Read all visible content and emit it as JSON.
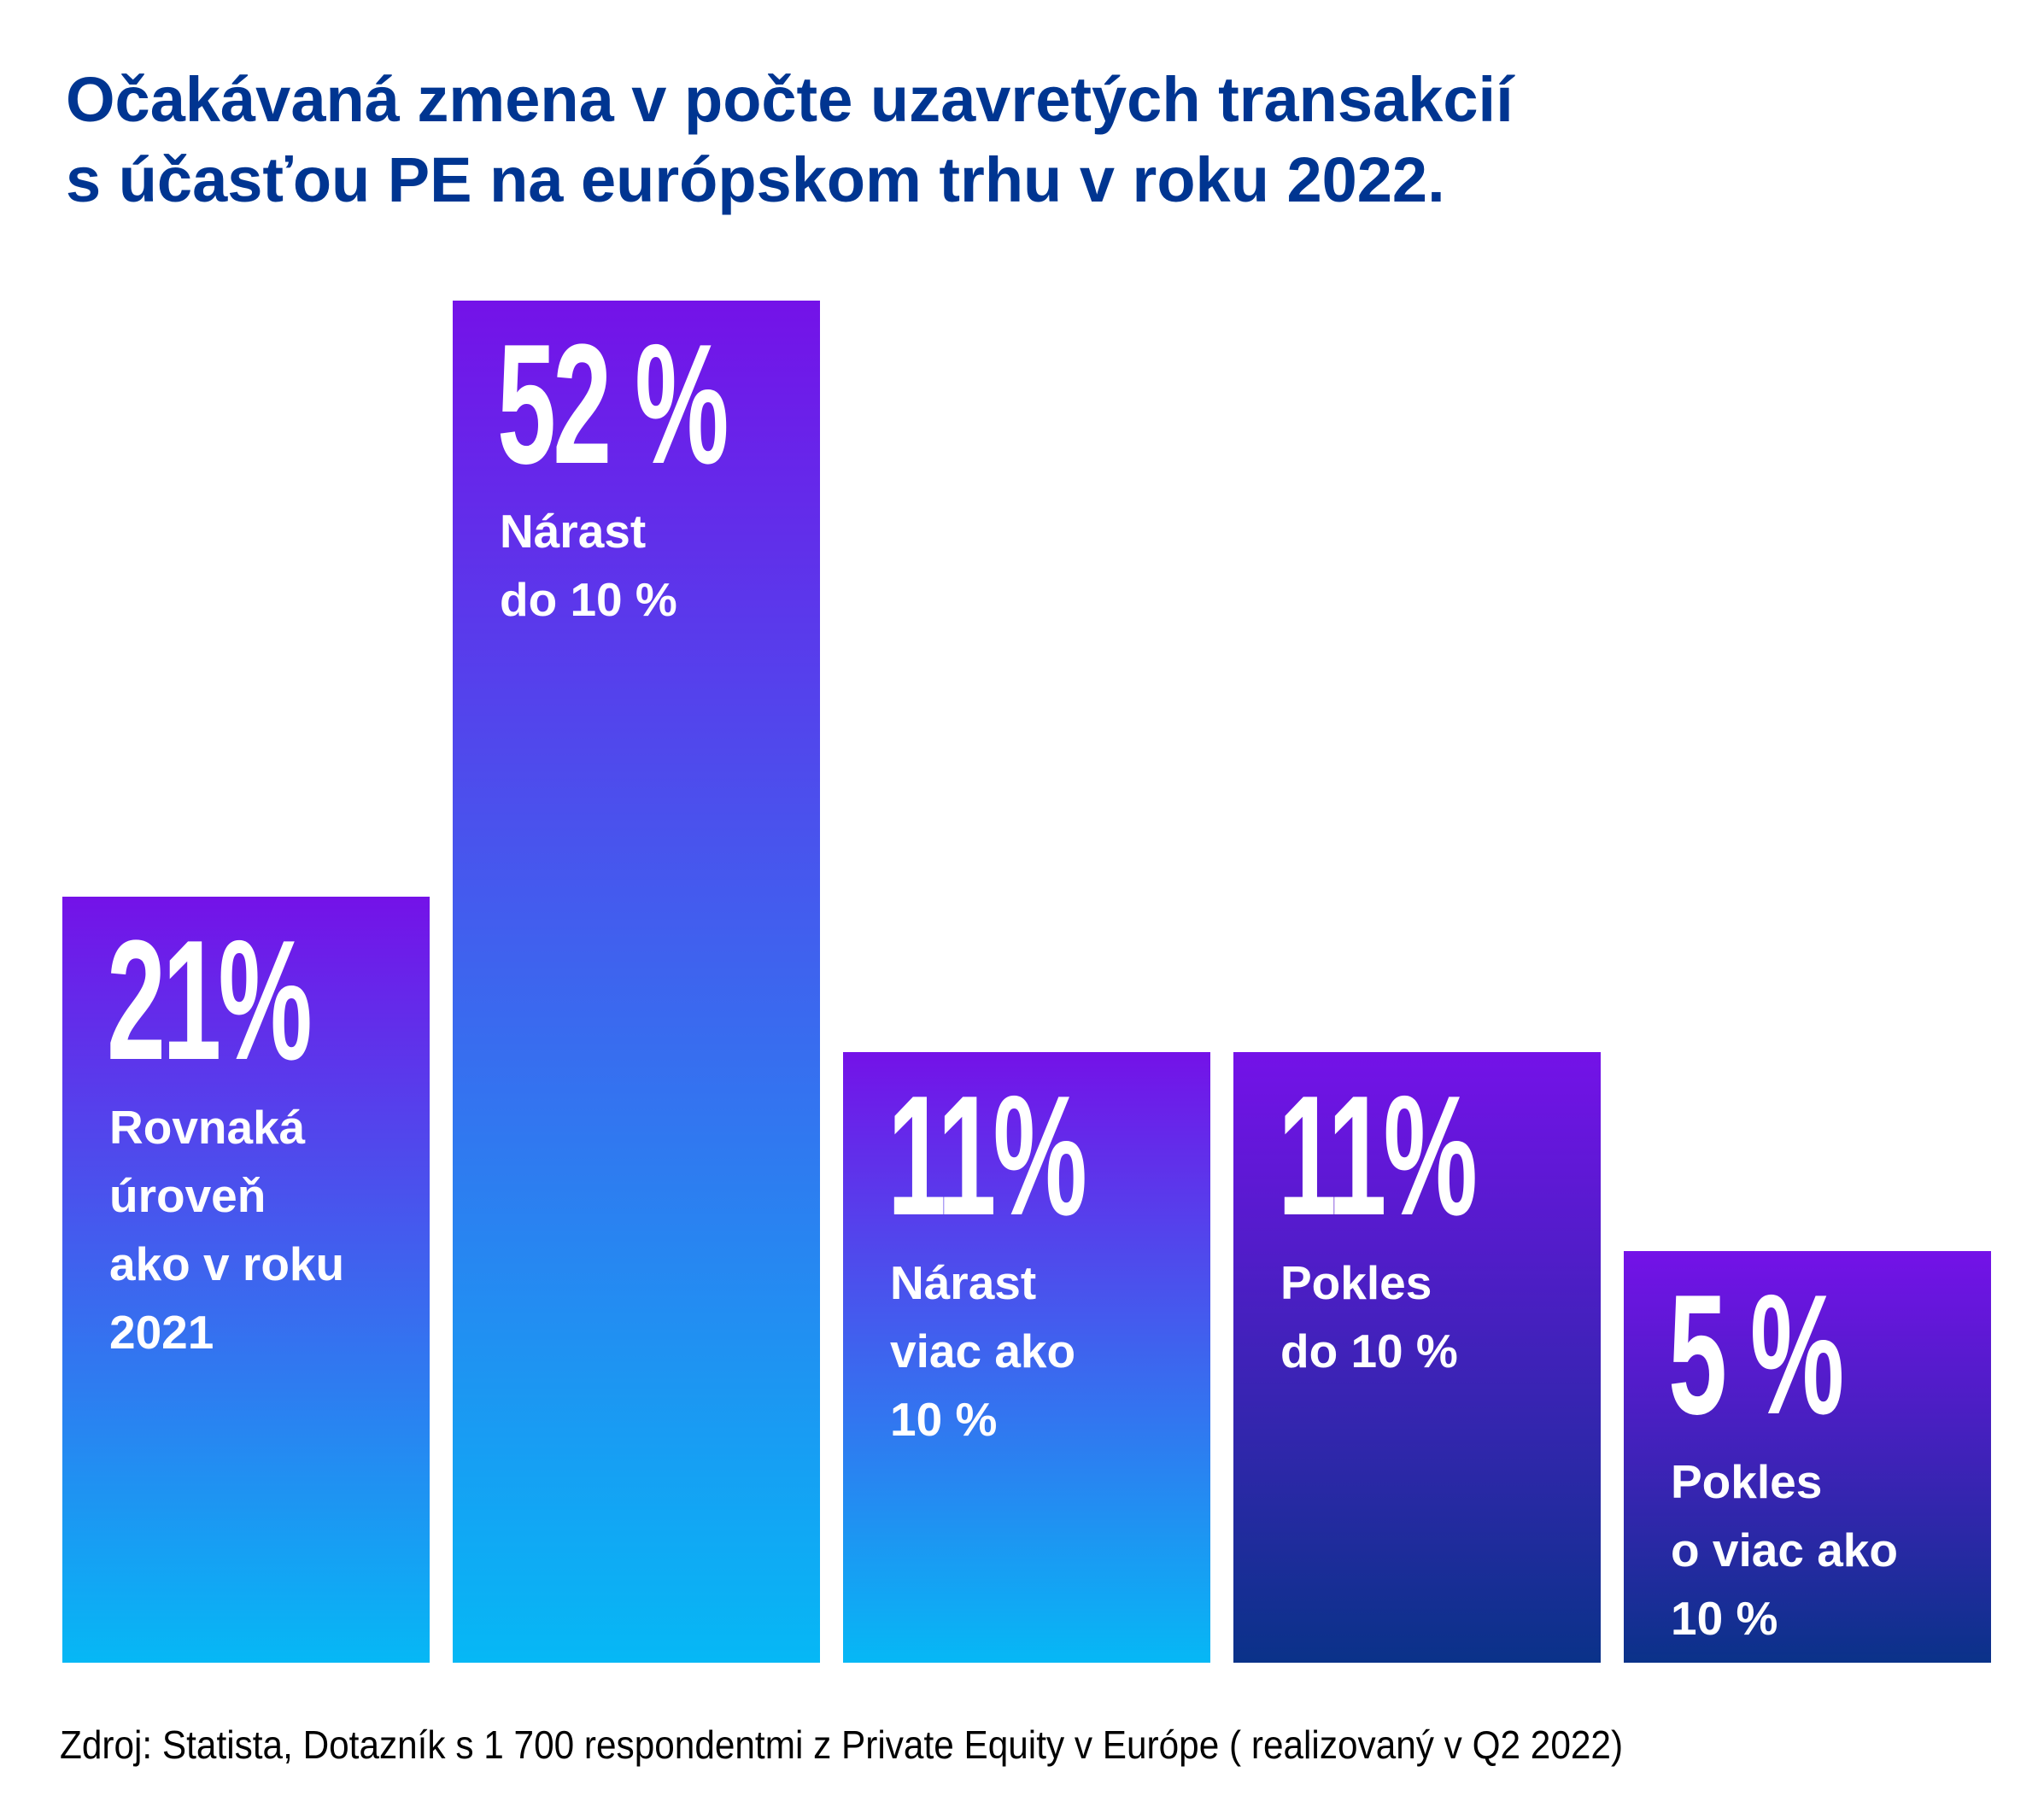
{
  "title": {
    "lines": [
      "Očakávaná zmena v počte uzavretých transakcií",
      "s účasťou PE na európskom trhu v roku 2022."
    ]
  },
  "colors": {
    "title": "#003591",
    "bar_top": "#7412E8",
    "bar_bottom_increase": "#06B8F5",
    "bar_bottom_decrease": "#0A3289",
    "text_on_bar": "#FFFFFF",
    "source": "#000000"
  },
  "chart_data": {
    "type": "bar",
    "title": "Očakávaná zmena v počte uzavretých transakcií s účasťou PE na európskom trhu v roku 2022.",
    "xlabel": "",
    "ylabel": "",
    "unit": "%",
    "grid": false,
    "legend": "none",
    "categories": [
      "Rovnaká úroveň ako v roku 2021",
      "Nárast do 10 %",
      "Nárast viac ako 10 %",
      "Pokles do 10 %",
      "Pokles o viac ako 10 %"
    ],
    "values": [
      21,
      52,
      11,
      11,
      5
    ],
    "bars": [
      {
        "value_label": "21%",
        "label_lines": [
          "Rovnaká",
          "úroveň",
          "ako v roku",
          "2021"
        ],
        "group": "increase"
      },
      {
        "value_label": "52 %",
        "label_lines": [
          "Nárast",
          "do 10 %"
        ],
        "group": "increase"
      },
      {
        "value_label": "11%",
        "label_lines": [
          "Nárast",
          "viac ako",
          "10 %"
        ],
        "group": "increase"
      },
      {
        "value_label": "11%",
        "label_lines": [
          "Pokles",
          "do 10 %"
        ],
        "group": "decrease"
      },
      {
        "value_label": "5 %",
        "label_lines": [
          "Pokles",
          "o viac ako",
          "10 %"
        ],
        "group": "decrease"
      }
    ]
  },
  "source": "Zdroj: Statista, Dotazník s 1 700 respondentmi z Private Equity v Európe ( realizovaný v Q2 2022)"
}
